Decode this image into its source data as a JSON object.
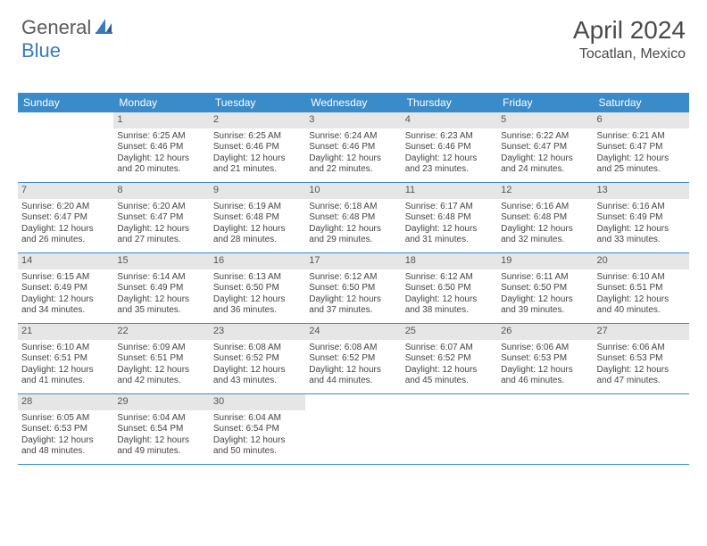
{
  "logo": {
    "general": "General",
    "blue": "Blue"
  },
  "title": "April 2024",
  "location": "Tocatlan, Mexico",
  "colors": {
    "header_bar": "#3a8bc9",
    "daynum_bg": "#e6e6e6",
    "text": "#444444",
    "logo_gray": "#5a5a5a",
    "logo_blue": "#3a7abd"
  },
  "weekdays": [
    "Sunday",
    "Monday",
    "Tuesday",
    "Wednesday",
    "Thursday",
    "Friday",
    "Saturday"
  ],
  "weeks": [
    [
      null,
      {
        "n": "1",
        "sr": "Sunrise: 6:25 AM",
        "ss": "Sunset: 6:46 PM",
        "d1": "Daylight: 12 hours",
        "d2": "and 20 minutes."
      },
      {
        "n": "2",
        "sr": "Sunrise: 6:25 AM",
        "ss": "Sunset: 6:46 PM",
        "d1": "Daylight: 12 hours",
        "d2": "and 21 minutes."
      },
      {
        "n": "3",
        "sr": "Sunrise: 6:24 AM",
        "ss": "Sunset: 6:46 PM",
        "d1": "Daylight: 12 hours",
        "d2": "and 22 minutes."
      },
      {
        "n": "4",
        "sr": "Sunrise: 6:23 AM",
        "ss": "Sunset: 6:46 PM",
        "d1": "Daylight: 12 hours",
        "d2": "and 23 minutes."
      },
      {
        "n": "5",
        "sr": "Sunrise: 6:22 AM",
        "ss": "Sunset: 6:47 PM",
        "d1": "Daylight: 12 hours",
        "d2": "and 24 minutes."
      },
      {
        "n": "6",
        "sr": "Sunrise: 6:21 AM",
        "ss": "Sunset: 6:47 PM",
        "d1": "Daylight: 12 hours",
        "d2": "and 25 minutes."
      }
    ],
    [
      {
        "n": "7",
        "sr": "Sunrise: 6:20 AM",
        "ss": "Sunset: 6:47 PM",
        "d1": "Daylight: 12 hours",
        "d2": "and 26 minutes."
      },
      {
        "n": "8",
        "sr": "Sunrise: 6:20 AM",
        "ss": "Sunset: 6:47 PM",
        "d1": "Daylight: 12 hours",
        "d2": "and 27 minutes."
      },
      {
        "n": "9",
        "sr": "Sunrise: 6:19 AM",
        "ss": "Sunset: 6:48 PM",
        "d1": "Daylight: 12 hours",
        "d2": "and 28 minutes."
      },
      {
        "n": "10",
        "sr": "Sunrise: 6:18 AM",
        "ss": "Sunset: 6:48 PM",
        "d1": "Daylight: 12 hours",
        "d2": "and 29 minutes."
      },
      {
        "n": "11",
        "sr": "Sunrise: 6:17 AM",
        "ss": "Sunset: 6:48 PM",
        "d1": "Daylight: 12 hours",
        "d2": "and 31 minutes."
      },
      {
        "n": "12",
        "sr": "Sunrise: 6:16 AM",
        "ss": "Sunset: 6:48 PM",
        "d1": "Daylight: 12 hours",
        "d2": "and 32 minutes."
      },
      {
        "n": "13",
        "sr": "Sunrise: 6:16 AM",
        "ss": "Sunset: 6:49 PM",
        "d1": "Daylight: 12 hours",
        "d2": "and 33 minutes."
      }
    ],
    [
      {
        "n": "14",
        "sr": "Sunrise: 6:15 AM",
        "ss": "Sunset: 6:49 PM",
        "d1": "Daylight: 12 hours",
        "d2": "and 34 minutes."
      },
      {
        "n": "15",
        "sr": "Sunrise: 6:14 AM",
        "ss": "Sunset: 6:49 PM",
        "d1": "Daylight: 12 hours",
        "d2": "and 35 minutes."
      },
      {
        "n": "16",
        "sr": "Sunrise: 6:13 AM",
        "ss": "Sunset: 6:50 PM",
        "d1": "Daylight: 12 hours",
        "d2": "and 36 minutes."
      },
      {
        "n": "17",
        "sr": "Sunrise: 6:12 AM",
        "ss": "Sunset: 6:50 PM",
        "d1": "Daylight: 12 hours",
        "d2": "and 37 minutes."
      },
      {
        "n": "18",
        "sr": "Sunrise: 6:12 AM",
        "ss": "Sunset: 6:50 PM",
        "d1": "Daylight: 12 hours",
        "d2": "and 38 minutes."
      },
      {
        "n": "19",
        "sr": "Sunrise: 6:11 AM",
        "ss": "Sunset: 6:50 PM",
        "d1": "Daylight: 12 hours",
        "d2": "and 39 minutes."
      },
      {
        "n": "20",
        "sr": "Sunrise: 6:10 AM",
        "ss": "Sunset: 6:51 PM",
        "d1": "Daylight: 12 hours",
        "d2": "and 40 minutes."
      }
    ],
    [
      {
        "n": "21",
        "sr": "Sunrise: 6:10 AM",
        "ss": "Sunset: 6:51 PM",
        "d1": "Daylight: 12 hours",
        "d2": "and 41 minutes."
      },
      {
        "n": "22",
        "sr": "Sunrise: 6:09 AM",
        "ss": "Sunset: 6:51 PM",
        "d1": "Daylight: 12 hours",
        "d2": "and 42 minutes."
      },
      {
        "n": "23",
        "sr": "Sunrise: 6:08 AM",
        "ss": "Sunset: 6:52 PM",
        "d1": "Daylight: 12 hours",
        "d2": "and 43 minutes."
      },
      {
        "n": "24",
        "sr": "Sunrise: 6:08 AM",
        "ss": "Sunset: 6:52 PM",
        "d1": "Daylight: 12 hours",
        "d2": "and 44 minutes."
      },
      {
        "n": "25",
        "sr": "Sunrise: 6:07 AM",
        "ss": "Sunset: 6:52 PM",
        "d1": "Daylight: 12 hours",
        "d2": "and 45 minutes."
      },
      {
        "n": "26",
        "sr": "Sunrise: 6:06 AM",
        "ss": "Sunset: 6:53 PM",
        "d1": "Daylight: 12 hours",
        "d2": "and 46 minutes."
      },
      {
        "n": "27",
        "sr": "Sunrise: 6:06 AM",
        "ss": "Sunset: 6:53 PM",
        "d1": "Daylight: 12 hours",
        "d2": "and 47 minutes."
      }
    ],
    [
      {
        "n": "28",
        "sr": "Sunrise: 6:05 AM",
        "ss": "Sunset: 6:53 PM",
        "d1": "Daylight: 12 hours",
        "d2": "and 48 minutes."
      },
      {
        "n": "29",
        "sr": "Sunrise: 6:04 AM",
        "ss": "Sunset: 6:54 PM",
        "d1": "Daylight: 12 hours",
        "d2": "and 49 minutes."
      },
      {
        "n": "30",
        "sr": "Sunrise: 6:04 AM",
        "ss": "Sunset: 6:54 PM",
        "d1": "Daylight: 12 hours",
        "d2": "and 50 minutes."
      },
      null,
      null,
      null,
      null
    ]
  ]
}
